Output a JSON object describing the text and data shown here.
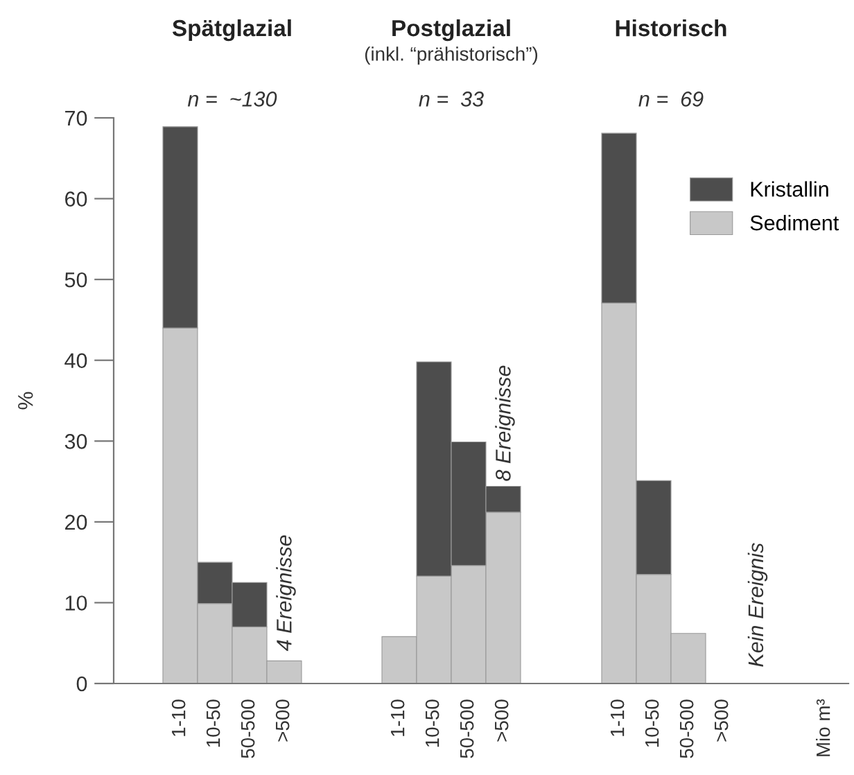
{
  "chart_data": [
    {
      "type": "bar",
      "stacked": true,
      "title": "Spätglazial",
      "ylabel": "%",
      "categories": [
        "1-10",
        "10-50",
        "50-500",
        ">500"
      ],
      "ylim": [
        0,
        70
      ],
      "yticks": [
        0,
        10,
        20,
        30,
        40,
        50,
        60,
        70
      ],
      "grid": false,
      "legend": false,
      "annotations": [
        "n =  ~130",
        "4 Ereignisse"
      ],
      "series": [
        {
          "color": "#c8c8c8",
          "values": [
            44,
            9.9,
            7,
            2.8
          ]
        },
        {
          "color": "#4d4d4d",
          "values": [
            24.9,
            5.1,
            5.5,
            null
          ]
        }
      ]
    },
    {
      "type": "bar",
      "stacked": true,
      "title": "Postglazial",
      "subtitle": "(inkl. “prähistorisch”)",
      "categories": [
        "1-10",
        "10-50",
        "50-500",
        ">500"
      ],
      "ylim": [
        0,
        70
      ],
      "tick_labels": "x",
      "grid": false,
      "legend": false,
      "annotations": [
        "n =  33",
        "8 Ereignisse"
      ],
      "series": [
        {
          "color": "#c8c8c8",
          "values": [
            5.8,
            13.3,
            14.6,
            21.2
          ]
        },
        {
          "color": "#4d4d4d",
          "values": [
            null,
            26.5,
            15.3,
            3.2
          ]
        }
      ]
    },
    {
      "type": "bar",
      "stacked": true,
      "title": "Historisch",
      "categories": [
        "1-10",
        "10-50",
        "50-500",
        ">500"
      ],
      "ylim": [
        0,
        70
      ],
      "tick_labels": "x",
      "grid": false,
      "legend": "top right",
      "annotations": [
        "n =  69",
        "Kein Ereignis",
        "Mio m³"
      ],
      "series": [
        {
          "name": "Sediment",
          "color": "#c8c8c8",
          "values": [
            47.1,
            13.5,
            6.2,
            null
          ]
        },
        {
          "name": "Kristallin",
          "color": "#4d4d4d",
          "values": [
            21,
            11.6,
            null,
            null
          ]
        }
      ]
    }
  ]
}
